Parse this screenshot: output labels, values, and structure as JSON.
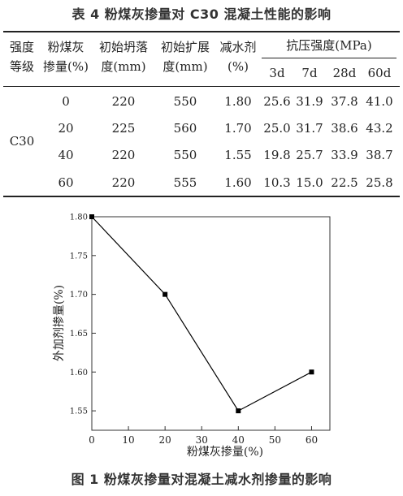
{
  "table": {
    "caption": "表 4   粉煤灰掺量对 C30 混凝土性能的影响",
    "headers": {
      "grade": [
        "强度",
        "等级"
      ],
      "flyash": [
        "粉煤灰",
        "掺量(%)"
      ],
      "slump": [
        "初始坍落",
        "度(mm)"
      ],
      "spread": [
        "初始扩展",
        "度(mm)"
      ],
      "reducer": [
        "减水剂",
        "(%)"
      ],
      "strength": "抗压强度(MPa)",
      "days": [
        "3d",
        "7d",
        "28d",
        "60d"
      ]
    },
    "grade_value": "C30",
    "rows": [
      [
        "0",
        "220",
        "550",
        "1.80",
        "25.6",
        "31.9",
        "37.8",
        "41.0"
      ],
      [
        "20",
        "225",
        "560",
        "1.70",
        "25.0",
        "31.7",
        "38.6",
        "43.2"
      ],
      [
        "40",
        "220",
        "550",
        "1.55",
        "19.8",
        "25.7",
        "33.9",
        "38.7"
      ],
      [
        "60",
        "220",
        "555",
        "1.60",
        "10.3",
        "15.0",
        "22.5",
        "25.8"
      ]
    ]
  },
  "figure": {
    "caption": "图 1   粉煤灰掺量对混凝土减水剂掺量的影响"
  },
  "chart_data": {
    "type": "line",
    "x": [
      0,
      20,
      40,
      60
    ],
    "y": [
      1.8,
      1.7,
      1.55,
      1.6
    ],
    "xlabel": "粉煤灰掺量(%)",
    "ylabel": "外加剂掺量(%)",
    "xlim": [
      0,
      65
    ],
    "ylim": [
      1.525,
      1.8
    ],
    "xticks": [
      "0",
      "10",
      "20",
      "30",
      "40",
      "50",
      "60"
    ],
    "yticks": [
      "1.55",
      "1.60",
      "1.65",
      "1.70",
      "1.75",
      "1.80"
    ],
    "grid": false,
    "line_color": "#000000",
    "marker": "square"
  }
}
